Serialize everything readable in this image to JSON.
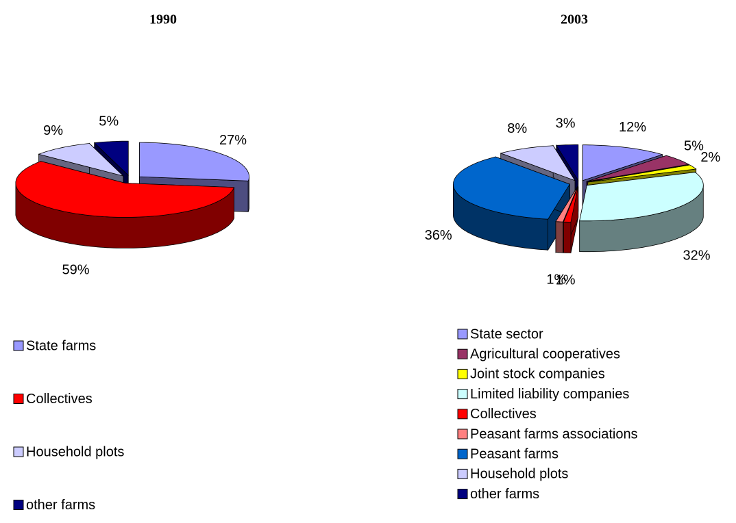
{
  "chart_data": [
    {
      "type": "pie",
      "title": "1990",
      "categories": [
        "State farms",
        "Collectives",
        "Household plots",
        "other farms"
      ],
      "values": [
        27,
        59,
        9,
        5
      ],
      "value_labels": [
        "27%",
        "59%",
        "9%",
        "5%"
      ],
      "colors": [
        "#9999ff",
        "#ff0000",
        "#ccccff",
        "#000080"
      ]
    },
    {
      "type": "pie",
      "title": "2003",
      "categories": [
        "State sector",
        "Agricultural cooperatives",
        "Joint stock companies",
        "Limited liability companies",
        "Collectives",
        "Peasant farms associations",
        "Peasant farms",
        "Household plots",
        "other farms"
      ],
      "values": [
        12,
        5,
        2,
        32,
        1,
        1,
        36,
        8,
        3
      ],
      "value_labels": [
        "12%",
        "5%",
        "2%",
        "32%",
        "1%",
        "1%",
        "36%",
        "8%",
        "3%"
      ],
      "colors": [
        "#9999ff",
        "#993366",
        "#ffff00",
        "#ccffff",
        "#ff0000",
        "#ff8080",
        "#0066cc",
        "#ccccff",
        "#000080"
      ]
    }
  ]
}
